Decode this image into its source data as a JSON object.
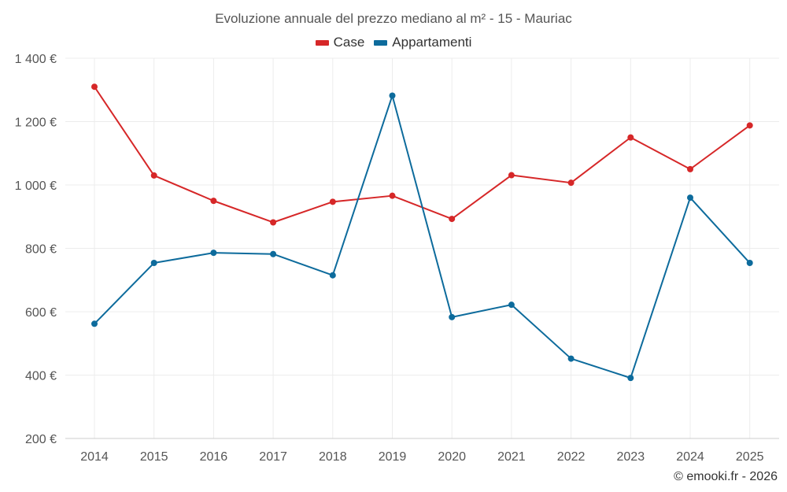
{
  "chart_data": {
    "type": "line",
    "title": "Evoluzione annuale del prezzo mediano al m² - 15 - Mauriac",
    "categories": [
      "2014",
      "2015",
      "2016",
      "2017",
      "2018",
      "2019",
      "2020",
      "2021",
      "2022",
      "2023",
      "2024",
      "2025"
    ],
    "series": [
      {
        "name": "Case",
        "color": "#d62728",
        "values": [
          1310,
          1030,
          950,
          882,
          947,
          966,
          893,
          1031,
          1007,
          1150,
          1050,
          1188
        ]
      },
      {
        "name": "Appartamenti",
        "color": "#0d6b9c",
        "values": [
          562,
          754,
          786,
          782,
          715,
          1282,
          583,
          622,
          452,
          391,
          960,
          754
        ]
      }
    ],
    "y_ticks": [
      200,
      400,
      600,
      800,
      1000,
      1200,
      1400
    ],
    "y_tick_labels": [
      "200 €",
      "400 €",
      "600 €",
      "800 €",
      "1 000 €",
      "1 200 €",
      "1 400 €"
    ],
    "ylim": [
      200,
      1400
    ],
    "xlabel": "",
    "ylabel": "",
    "grid": true,
    "legend_position": "top-center"
  },
  "credit": "© emooki.fr - 2026"
}
